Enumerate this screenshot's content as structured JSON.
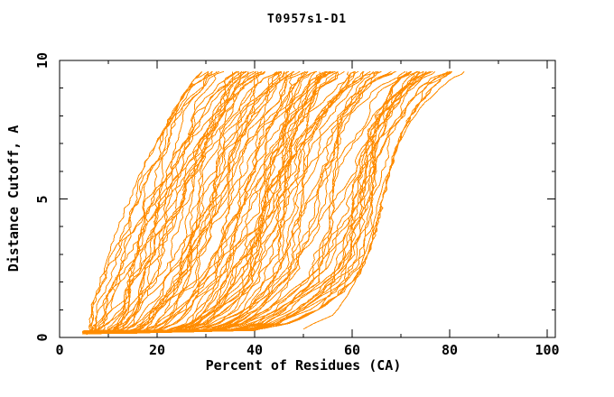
{
  "chart_data": {
    "type": "line",
    "title": "T0957s1-D1",
    "xlabel": "Percent of Residues (CA)",
    "ylabel": "Distance Cutoff, A",
    "xlim": [
      0,
      101.7
    ],
    "ylim": [
      0,
      10
    ],
    "x_ticks_major": [
      0,
      20,
      40,
      60,
      80,
      100
    ],
    "x_ticks_minor": [
      10,
      30,
      50,
      70,
      90
    ],
    "y_ticks_major": [
      0,
      5,
      10
    ],
    "y_ticks_minor": [
      1,
      2,
      3,
      4,
      6,
      7,
      8,
      9
    ],
    "grid": false,
    "legend": "none",
    "axis_color": "#000000",
    "background_color": "#ffffff",
    "series_color": "#ff8c00",
    "curve_plateau_y": 9.6,
    "curve_model": {
      "comment": "Bundle of ~100 model curves (percent of CA residues under distance cutoff). Curves fan from a common origin near (5,0.2) up to a plateau at cutoff 9.6 A spanning 29-80 percent. Envelopes read from the plot.",
      "count": 100,
      "seed": 957,
      "start": {
        "x_min": 4.6,
        "x_spread": 2.6,
        "y_min": 0.12,
        "y_spread": 0.12
      },
      "y_levels": [
        0.25,
        0.5,
        1,
        1.5,
        2,
        2.5,
        3,
        3.5,
        4,
        4.5,
        5,
        5.5,
        6,
        6.5,
        7,
        7.5,
        8,
        8.5,
        9,
        9.35,
        9.6
      ],
      "x_left": [
        5.0,
        5.6,
        6.4,
        7.2,
        8.1,
        9.0,
        9.9,
        10.9,
        11.9,
        13.0,
        14.2,
        15.4,
        16.7,
        18.1,
        19.6,
        21.1,
        22.7,
        24.4,
        26.2,
        27.6,
        29.0
      ],
      "x_right": [
        40,
        47,
        53,
        57,
        60,
        62,
        63.2,
        64.2,
        65.0,
        65.7,
        66.3,
        67.0,
        67.7,
        68.5,
        69.4,
        70.5,
        72.0,
        74.0,
        76.3,
        78.3,
        80.5
      ],
      "level_noise": 0.07,
      "noise_clamp": 0.13,
      "wiggle": 0.8
    },
    "outlier_curve": [
      [
        50,
        0.3
      ],
      [
        56,
        0.8
      ],
      [
        59,
        1.5
      ],
      [
        61,
        2.2
      ],
      [
        63,
        3.2
      ],
      [
        64.5,
        4.2
      ],
      [
        65.5,
        5.0
      ],
      [
        67,
        5.8
      ],
      [
        68,
        6.2
      ],
      [
        69.5,
        7.0
      ],
      [
        72,
        7.8
      ],
      [
        75,
        8.5
      ],
      [
        78,
        9.0
      ],
      [
        81,
        9.4
      ],
      [
        83,
        9.6
      ]
    ]
  }
}
